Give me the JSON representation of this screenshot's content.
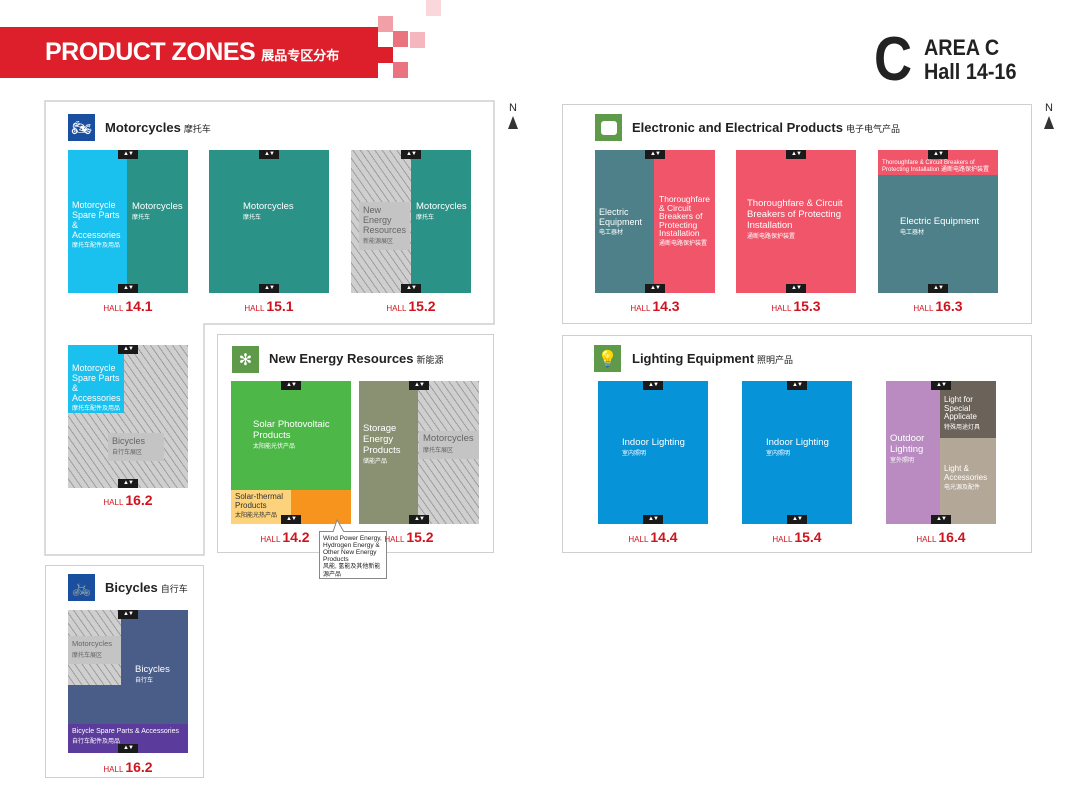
{
  "header": {
    "title": "PRODUCT ZONES",
    "title_cn": "展品专区分布",
    "area_letter": "C",
    "area": "AREA C",
    "hall_range": "Hall 14-16"
  },
  "compass": "N",
  "arrows": "▲▼",
  "hall_prefix": "HALL",
  "colors": {
    "brand_red": "#dc1f2a",
    "teal": "#2a9287",
    "cyan": "#1ac0ee",
    "pink": "#f0556a",
    "slate": "#4e8089",
    "green": "#4db848",
    "blue": "#0793d8"
  },
  "sections": {
    "motorcycles": {
      "title": "Motorcycles",
      "title_cn": "摩托车",
      "icon": "motorcycle-icon"
    },
    "electrical": {
      "title": "Electronic and Electrical Products",
      "title_cn": "电子电气产品",
      "icon": "power-socket-icon"
    },
    "energy": {
      "title": "New Energy Resources",
      "title_cn": "新能源",
      "icon": "wind-solar-icon"
    },
    "lighting": {
      "title": "Lighting Equipment",
      "title_cn": "照明产品",
      "icon": "light-bulb-icon"
    },
    "bicycles": {
      "title": "Bicycles",
      "title_cn": "自行车",
      "icon": "bicycle-icon"
    }
  },
  "halls": {
    "h141": {
      "number": "14.1",
      "zones": [
        {
          "en": "Motorcycle Spare Parts & Accessories",
          "cn": "摩托车配件及用品"
        },
        {
          "en": "Motorcycles",
          "cn": "摩托车"
        }
      ]
    },
    "h151": {
      "number": "15.1",
      "zones": [
        {
          "en": "Motorcycles",
          "cn": "摩托车"
        }
      ]
    },
    "h152a": {
      "number": "15.2",
      "zones": [
        {
          "en": "New Energy Resources",
          "cn": "新能源展区"
        },
        {
          "en": "Motorcycles",
          "cn": "摩托车"
        }
      ]
    },
    "h162a": {
      "number": "16.2",
      "zones": [
        {
          "en": "Motorcycle Spare Parts & Accessories",
          "cn": "摩托车配件及用品"
        },
        {
          "en": "Bicycles",
          "cn": "自行车展区"
        }
      ]
    },
    "h143": {
      "number": "14.3",
      "zones": [
        {
          "en": "Electric Equipment",
          "cn": "电工器材"
        },
        {
          "en": "Thoroughfare & Circuit Breakers of Protecting Installation",
          "cn": "通断电路保护装置"
        }
      ]
    },
    "h153": {
      "number": "15.3",
      "zones": [
        {
          "en": "Thoroughfare & Circuit Breakers of Protecting Installation",
          "cn": "通断电路保护装置"
        }
      ]
    },
    "h163": {
      "number": "16.3",
      "zones": [
        {
          "en": "Thoroughfare & Circuit Breakers of Protecting Installation",
          "cn": "通断电路保护装置"
        },
        {
          "en": "Electric Equipment",
          "cn": "电工器材"
        }
      ]
    },
    "h142": {
      "number": "14.2",
      "zones": [
        {
          "en": "Solar Photovoltaic Products",
          "cn": "太阳能光伏产品"
        },
        {
          "en": "Solar-thermal Products",
          "cn": "太阳能光热产品"
        }
      ],
      "callout": {
        "en": "Wind Power Energy, Hydrogen Energy & Other New Energy Products",
        "cn": "风能, 氢能及其他新能源产品"
      }
    },
    "h152b": {
      "number": "15.2",
      "zones": [
        {
          "en": "Storage Energy Products",
          "cn": "储能产品"
        },
        {
          "en": "Motorcycles",
          "cn": "摩托车展区"
        }
      ]
    },
    "h144": {
      "number": "14.4",
      "zones": [
        {
          "en": "Indoor Lighting",
          "cn": "室内照明"
        }
      ]
    },
    "h154": {
      "number": "15.4",
      "zones": [
        {
          "en": "Indoor Lighting",
          "cn": "室内照明"
        }
      ]
    },
    "h164": {
      "number": "16.4",
      "zones": [
        {
          "en": "Outdoor Lighting",
          "cn": "室外照明"
        },
        {
          "en": "Light for Special Applicate",
          "cn": "特殊用途灯具"
        },
        {
          "en": "Light & Accessories",
          "cn": "电光源及配件"
        }
      ]
    },
    "h162b": {
      "number": "16.2",
      "zones": [
        {
          "en": "Motorcycles",
          "cn": "摩托车展区"
        },
        {
          "en": "Bicycles",
          "cn": "自行车"
        },
        {
          "en": "Bicycle Spare Parts & Accessories",
          "cn": "自行车配件及用品"
        }
      ]
    }
  }
}
